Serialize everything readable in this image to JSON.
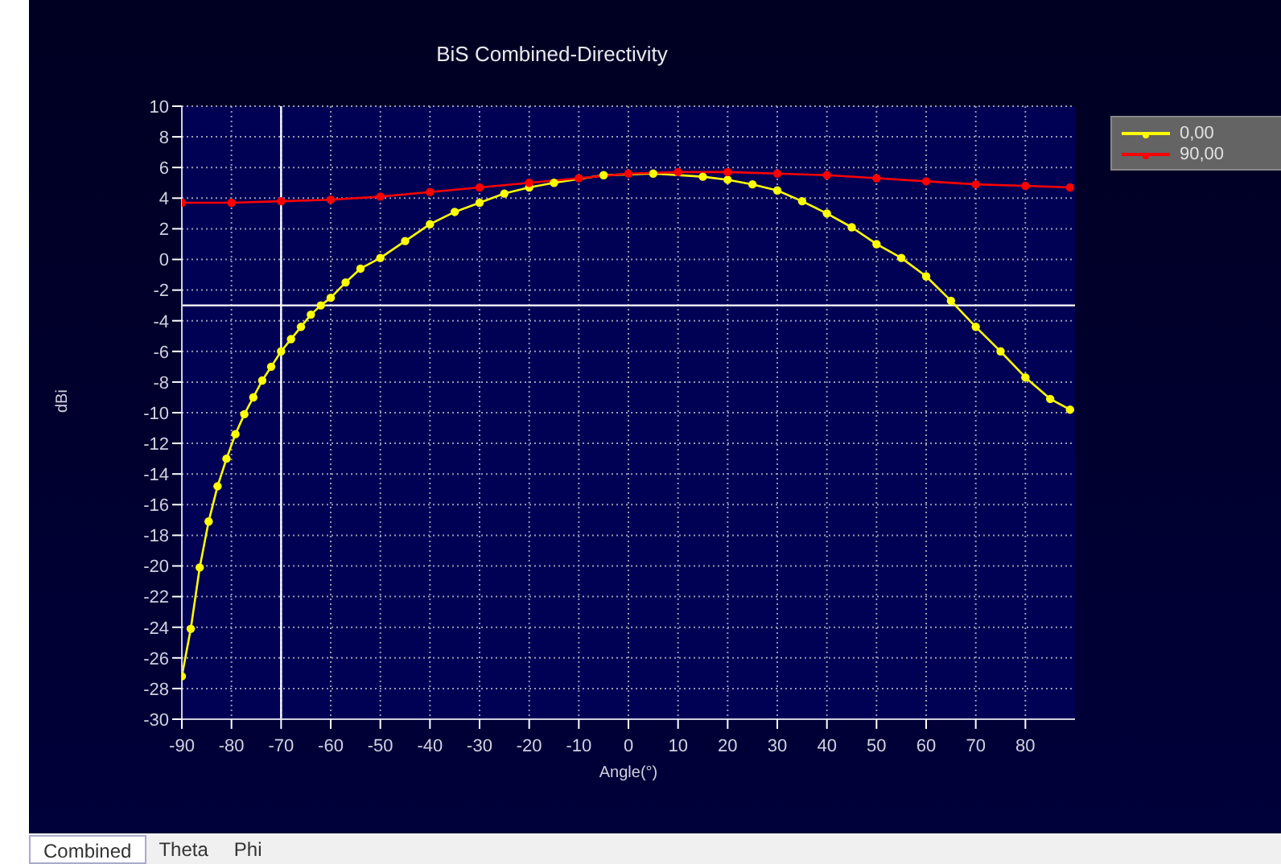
{
  "chart_data": {
    "type": "line",
    "title": "BiS Combined-Directivity",
    "xlabel": "Angle(°)",
    "ylabel": "dBi",
    "xlim": [
      -90,
      90
    ],
    "xticks": [
      -90,
      -80,
      -70,
      -60,
      -50,
      -40,
      -30,
      -20,
      -10,
      0,
      10,
      20,
      30,
      40,
      50,
      60,
      70,
      80
    ],
    "ylim": [
      -30,
      10
    ],
    "yticks": [
      -30,
      -28,
      -26,
      -24,
      -22,
      -20,
      -18,
      -16,
      -14,
      -12,
      -10,
      -8,
      -6,
      -4,
      -2,
      0,
      2,
      4,
      6,
      8,
      10
    ],
    "grid": true,
    "legend": "top right",
    "marker": "circle",
    "line_style": "solid",
    "series": [
      {
        "name": "0,00",
        "color": "#ffff00",
        "x": [
          -90,
          -88.2,
          -86.4,
          -84.6,
          -82.8,
          -81,
          -79.2,
          -77.4,
          -75.6,
          -73.8,
          -72,
          -70,
          -68,
          -66,
          -64,
          -62,
          -60,
          -57,
          -54,
          -50,
          -45,
          -40,
          -35,
          -30,
          -25,
          -20,
          -15,
          -5,
          5,
          15,
          20,
          25,
          30,
          35,
          40,
          45,
          50,
          55,
          60,
          65,
          70,
          75,
          80,
          85,
          89
        ],
        "values": [
          -27.2,
          -24.1,
          -20.1,
          -17.1,
          -14.8,
          -13,
          -11.4,
          -10.1,
          -9,
          -7.9,
          -7,
          -6,
          -5.2,
          -4.4,
          -3.6,
          -3,
          -2.5,
          -1.5,
          -0.6,
          0.1,
          1.2,
          2.3,
          3.1,
          3.7,
          4.3,
          4.7,
          5,
          5.5,
          5.6,
          5.4,
          5.2,
          4.9,
          4.5,
          3.8,
          3,
          2.1,
          1,
          0.1,
          -1.1,
          -2.7,
          -4.4,
          -6,
          -7.7,
          -9.1,
          -9.8
        ]
      },
      {
        "name": "90,00",
        "color": "#ff0000",
        "x": [
          -90,
          -80,
          -70,
          -60,
          -50,
          -40,
          -30,
          -20,
          -10,
          0,
          10,
          20,
          30,
          40,
          50,
          60,
          70,
          80,
          89
        ],
        "values": [
          3.7,
          3.7,
          3.8,
          3.9,
          4.1,
          4.4,
          4.7,
          5,
          5.3,
          5.6,
          5.7,
          5.7,
          5.6,
          5.5,
          5.3,
          5.1,
          4.9,
          4.8,
          4.7
        ]
      }
    ],
    "ref_lines": [
      {
        "axis": "x",
        "value": -70,
        "color": "#ffffff"
      },
      {
        "axis": "y",
        "value": -3,
        "color": "#ffffff"
      }
    ],
    "annotations": [
      "Combined",
      "Theta",
      "Phi"
    ]
  }
}
